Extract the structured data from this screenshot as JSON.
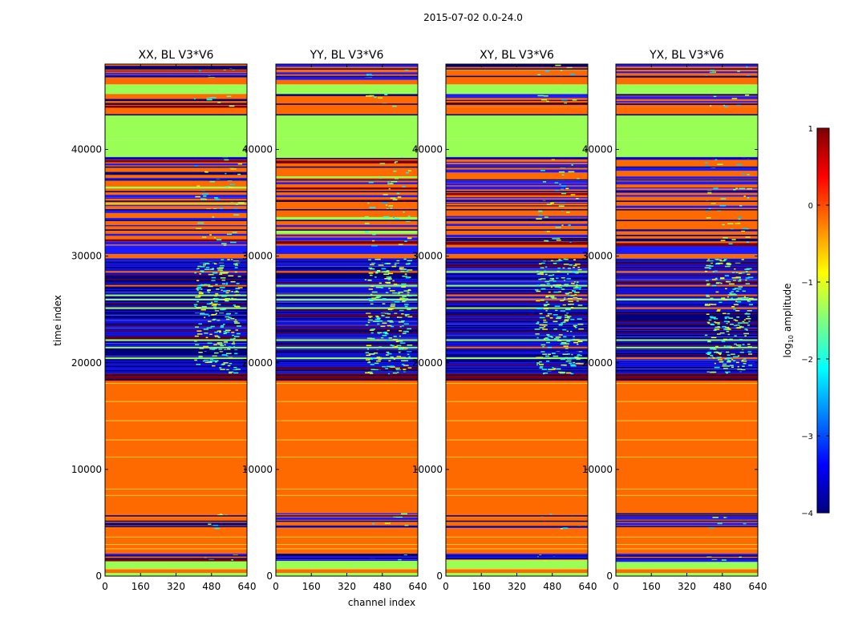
{
  "chart_data": {
    "type": "heatmap",
    "suptitle": "2015-07-02 0.0-24.0",
    "xlabel": "channel index",
    "ylabel": "time index",
    "xlim": [
      0,
      640
    ],
    "ylim": [
      0,
      48000
    ],
    "xticks": [
      0,
      160,
      320,
      480,
      640
    ],
    "yticks": [
      0,
      10000,
      20000,
      30000,
      40000
    ],
    "xtick_labels": [
      "0",
      "160",
      "320",
      "480",
      "640"
    ],
    "ytick_labels": [
      "0",
      "10000",
      "20000",
      "30000",
      "40000"
    ],
    "panels": [
      {
        "title": "XX, BL V3*V6"
      },
      {
        "title": "YY, BL V3*V6"
      },
      {
        "title": "XY, BL V3*V6"
      },
      {
        "title": "YX, BL V3*V6"
      }
    ],
    "colorbar": {
      "label": "log10 amplitude",
      "label_prefix": "log",
      "label_sub": "10",
      "label_suffix": " amplitude",
      "colormap": "jet",
      "range": [
        -4,
        1
      ],
      "ticks": [
        1,
        0,
        -1,
        -2,
        -3,
        -4
      ],
      "tick_labels": [
        "1",
        "0",
        "−1",
        "−2",
        "−3",
        "−4"
      ]
    },
    "colormap_stops": [
      "#00007f",
      "#0000ff",
      "#007fff",
      "#00ffff",
      "#7fff7f",
      "#ffff00",
      "#ff7f00",
      "#ff0000",
      "#7f0000"
    ],
    "bands": [
      {
        "t0": 0,
        "t1": 300,
        "kind": "green"
      },
      {
        "t0": 300,
        "t1": 650,
        "kind": "orange"
      },
      {
        "t0": 650,
        "t1": 1500,
        "kind": "green"
      },
      {
        "t0": 1500,
        "t1": 2100,
        "kind": "mix"
      },
      {
        "t0": 2100,
        "t1": 4500,
        "kind": "orange"
      },
      {
        "t0": 4500,
        "t1": 5000,
        "kind": "mix"
      },
      {
        "t0": 5000,
        "t1": 5500,
        "kind": "orange"
      },
      {
        "t0": 5500,
        "t1": 5900,
        "kind": "mix"
      },
      {
        "t0": 5900,
        "t1": 18300,
        "kind": "orange"
      },
      {
        "t0": 18300,
        "t1": 19000,
        "kind": "darkred"
      },
      {
        "t0": 19000,
        "t1": 29800,
        "kind": "noise"
      },
      {
        "t0": 29800,
        "t1": 30200,
        "kind": "orange"
      },
      {
        "t0": 30200,
        "t1": 31000,
        "kind": "blue"
      },
      {
        "t0": 31000,
        "t1": 32000,
        "kind": "mix"
      },
      {
        "t0": 32000,
        "t1": 36200,
        "kind": "stripes"
      },
      {
        "t0": 36200,
        "t1": 39300,
        "kind": "mix"
      },
      {
        "t0": 39300,
        "t1": 40800,
        "kind": "green"
      },
      {
        "t0": 40800,
        "t1": 43200,
        "kind": "green"
      },
      {
        "t0": 43200,
        "t1": 44000,
        "kind": "orange"
      },
      {
        "t0": 44000,
        "t1": 45200,
        "kind": "mix"
      },
      {
        "t0": 45200,
        "t1": 46100,
        "kind": "green"
      },
      {
        "t0": 46100,
        "t1": 46800,
        "kind": "orange"
      },
      {
        "t0": 46800,
        "t1": 48000,
        "kind": "mix"
      }
    ],
    "thin_lines": {
      "orange_region_lines": [
        700,
        2600,
        3000,
        3700,
        7600,
        8200,
        11200,
        12800,
        14600,
        16400,
        18100
      ],
      "dark_lines": [
        1700,
        1950,
        4700,
        5200,
        5700,
        18500,
        18900,
        19300,
        21200,
        24800,
        29500,
        32500,
        33400,
        34400,
        35200,
        36100,
        37200,
        38400,
        39200,
        43300,
        44300,
        46900,
        47600
      ]
    },
    "noise_channel_block": [
      400,
      600
    ]
  }
}
